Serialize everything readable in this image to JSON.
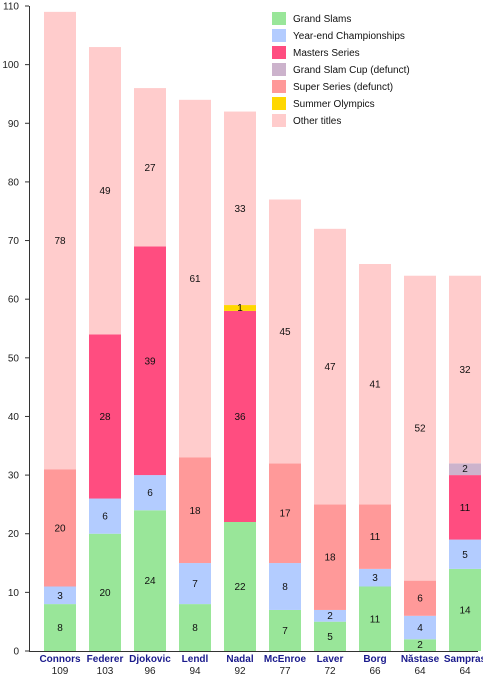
{
  "chart_data": {
    "type": "bar",
    "stacked": true,
    "categories": [
      "Connors",
      "Federer",
      "Djokovic",
      "Lendl",
      "Nadal",
      "McEnroe",
      "Laver",
      "Borg",
      "Năstase",
      "Sampras"
    ],
    "totals": [
      109,
      103,
      96,
      94,
      92,
      77,
      72,
      66,
      64,
      64
    ],
    "series": [
      {
        "name": "Grand Slams",
        "color": "#99e699",
        "values": [
          8,
          20,
          24,
          8,
          22,
          7,
          5,
          11,
          2,
          14
        ]
      },
      {
        "name": "Year-end Championships",
        "color": "#b3ccff",
        "values": [
          3,
          6,
          6,
          7,
          0,
          8,
          2,
          3,
          4,
          5
        ]
      },
      {
        "name": "Masters Series",
        "color": "#ff4d80",
        "values": [
          0,
          28,
          39,
          0,
          36,
          0,
          0,
          0,
          0,
          11
        ]
      },
      {
        "name": "Grand Slam Cup (defunct)",
        "color": "#ccb3cc",
        "values": [
          0,
          0,
          0,
          0,
          0,
          0,
          0,
          0,
          0,
          2
        ]
      },
      {
        "name": "Super Series (defunct)",
        "color": "#ff9999",
        "values": [
          20,
          0,
          0,
          18,
          0,
          17,
          18,
          11,
          6,
          0
        ]
      },
      {
        "name": "Summer Olympics",
        "color": "#ffd700",
        "values": [
          0,
          0,
          0,
          0,
          1,
          0,
          0,
          0,
          0,
          0
        ]
      },
      {
        "name": "Other titles",
        "color": "#ffcccc",
        "values": [
          78,
          49,
          27,
          61,
          33,
          45,
          47,
          41,
          52,
          32
        ]
      }
    ],
    "ylim": [
      0,
      110
    ],
    "yticks": [
      0,
      10,
      20,
      30,
      40,
      50,
      60,
      70,
      80,
      90,
      100,
      110
    ],
    "grid": false,
    "legend_position": "top-right"
  }
}
